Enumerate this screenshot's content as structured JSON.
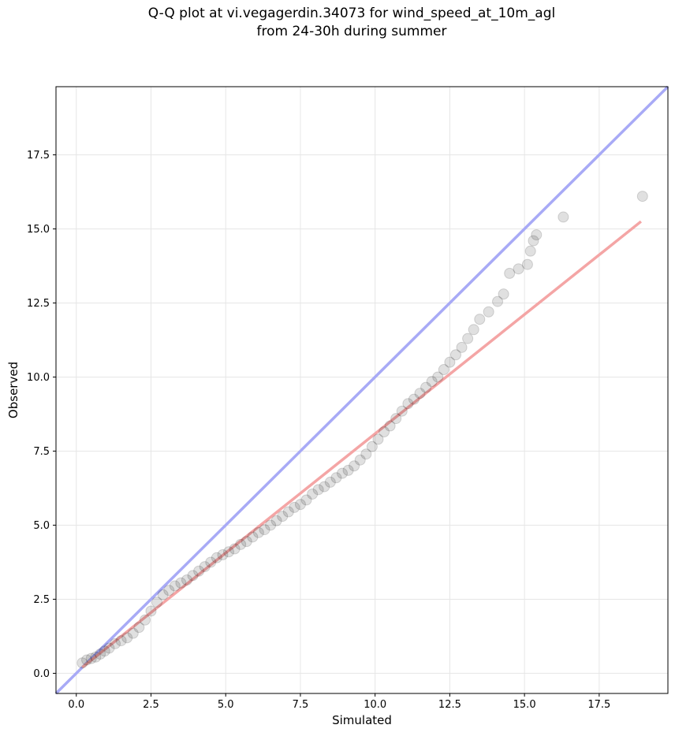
{
  "chart_data": {
    "type": "scatter",
    "title": [
      "Q-Q plot at vi.vegagerdin.34073 for wind_speed_at_10m_agl",
      "from 24-30h during summer"
    ],
    "xlabel": "Simulated",
    "ylabel": "Observed",
    "xlim": [
      -0.68,
      19.8
    ],
    "ylim": [
      -0.68,
      19.8
    ],
    "xticks": [
      "0.0",
      "2.5",
      "5.0",
      "7.5",
      "10.0",
      "12.5",
      "15.0",
      "17.5"
    ],
    "yticks": [
      "0.0",
      "2.5",
      "5.0",
      "7.5",
      "10.0",
      "12.5",
      "15.0",
      "17.5"
    ],
    "grid": true,
    "reference_line": {
      "color": "#a8aaf6",
      "from": [
        -0.68,
        -0.68
      ],
      "to": [
        19.8,
        19.8
      ]
    },
    "fit_line": {
      "color": "#f4a5a5",
      "from": [
        0.2,
        0.2
      ],
      "to": [
        18.9,
        15.25
      ]
    },
    "points": [
      [
        0.2,
        0.35
      ],
      [
        0.35,
        0.45
      ],
      [
        0.5,
        0.5
      ],
      [
        0.65,
        0.55
      ],
      [
        0.8,
        0.65
      ],
      [
        0.95,
        0.75
      ],
      [
        1.1,
        0.85
      ],
      [
        1.3,
        1.0
      ],
      [
        1.5,
        1.1
      ],
      [
        1.7,
        1.2
      ],
      [
        1.9,
        1.35
      ],
      [
        2.1,
        1.55
      ],
      [
        2.3,
        1.8
      ],
      [
        2.5,
        2.1
      ],
      [
        2.7,
        2.4
      ],
      [
        2.9,
        2.65
      ],
      [
        3.1,
        2.8
      ],
      [
        3.3,
        2.95
      ],
      [
        3.5,
        3.05
      ],
      [
        3.7,
        3.15
      ],
      [
        3.9,
        3.3
      ],
      [
        4.1,
        3.45
      ],
      [
        4.3,
        3.6
      ],
      [
        4.5,
        3.75
      ],
      [
        4.7,
        3.9
      ],
      [
        4.9,
        4.0
      ],
      [
        5.1,
        4.1
      ],
      [
        5.3,
        4.2
      ],
      [
        5.5,
        4.35
      ],
      [
        5.7,
        4.45
      ],
      [
        5.9,
        4.6
      ],
      [
        6.1,
        4.75
      ],
      [
        6.3,
        4.85
      ],
      [
        6.5,
        5.0
      ],
      [
        6.7,
        5.15
      ],
      [
        6.9,
        5.3
      ],
      [
        7.1,
        5.45
      ],
      [
        7.3,
        5.6
      ],
      [
        7.5,
        5.7
      ],
      [
        7.7,
        5.85
      ],
      [
        7.9,
        6.05
      ],
      [
        8.1,
        6.2
      ],
      [
        8.3,
        6.3
      ],
      [
        8.5,
        6.45
      ],
      [
        8.7,
        6.6
      ],
      [
        8.9,
        6.75
      ],
      [
        9.1,
        6.85
      ],
      [
        9.3,
        7.0
      ],
      [
        9.5,
        7.2
      ],
      [
        9.7,
        7.4
      ],
      [
        9.9,
        7.65
      ],
      [
        10.1,
        7.9
      ],
      [
        10.3,
        8.15
      ],
      [
        10.5,
        8.35
      ],
      [
        10.7,
        8.6
      ],
      [
        10.9,
        8.85
      ],
      [
        11.1,
        9.1
      ],
      [
        11.3,
        9.25
      ],
      [
        11.5,
        9.45
      ],
      [
        11.7,
        9.65
      ],
      [
        11.9,
        9.85
      ],
      [
        12.1,
        10.0
      ],
      [
        12.3,
        10.25
      ],
      [
        12.5,
        10.5
      ],
      [
        12.7,
        10.75
      ],
      [
        12.9,
        11.0
      ],
      [
        13.1,
        11.3
      ],
      [
        13.3,
        11.6
      ],
      [
        13.5,
        11.95
      ],
      [
        13.8,
        12.2
      ],
      [
        14.1,
        12.55
      ],
      [
        14.3,
        12.8
      ],
      [
        14.5,
        13.5
      ],
      [
        14.8,
        13.65
      ],
      [
        15.1,
        13.8
      ],
      [
        15.2,
        14.25
      ],
      [
        15.3,
        14.6
      ],
      [
        15.4,
        14.8
      ],
      [
        16.3,
        15.4
      ],
      [
        18.95,
        16.1
      ]
    ]
  }
}
